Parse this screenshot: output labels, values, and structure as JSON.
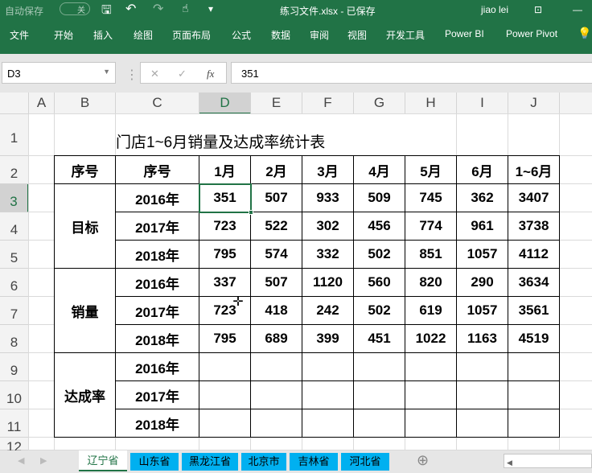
{
  "titlebar": {
    "autosave": "自动保存",
    "toggle": "关",
    "title": "练习文件.xlsx  -  已保存",
    "user": "jiao lei"
  },
  "ribbon": [
    "文件",
    "开始",
    "插入",
    "绘图",
    "页面布局",
    "公式",
    "数据",
    "审阅",
    "视图",
    "开发工具",
    "Power BI",
    "Power Pivot"
  ],
  "formula": {
    "namebox": "D3",
    "value": "351",
    "fx": "fx"
  },
  "columns": [
    "A",
    "B",
    "C",
    "D",
    "E",
    "F",
    "G",
    "H",
    "I",
    "J"
  ],
  "rows": [
    "1",
    "2",
    "3",
    "4",
    "5",
    "6",
    "7",
    "8",
    "9",
    "10",
    "11",
    "12"
  ],
  "sheet": {
    "title": "门店1~6月销量及达成率统计表",
    "headers": [
      "序号",
      "序号",
      "1月",
      "2月",
      "3月",
      "4月",
      "5月",
      "6月",
      "1~6月"
    ],
    "groups": [
      "目标",
      "销量",
      "达成率"
    ],
    "years": [
      "2016年",
      "2017年",
      "2018年"
    ],
    "values": [
      [
        "351",
        "507",
        "933",
        "509",
        "745",
        "362",
        "3407"
      ],
      [
        "723",
        "522",
        "302",
        "456",
        "774",
        "961",
        "3738"
      ],
      [
        "795",
        "574",
        "332",
        "502",
        "851",
        "1057",
        "4112"
      ],
      [
        "337",
        "507",
        "1120",
        "560",
        "820",
        "290",
        "3634"
      ],
      [
        "723",
        "418",
        "242",
        "502",
        "619",
        "1057",
        "3561"
      ],
      [
        "795",
        "689",
        "399",
        "451",
        "1022",
        "1163",
        "4519"
      ]
    ]
  },
  "tabs": [
    "辽宁省",
    "山东省",
    "黑龙江省",
    "北京市",
    "吉林省",
    "河北省"
  ],
  "colors": {
    "excel_green": "#217346",
    "tab_blue": "#00b0f0"
  }
}
